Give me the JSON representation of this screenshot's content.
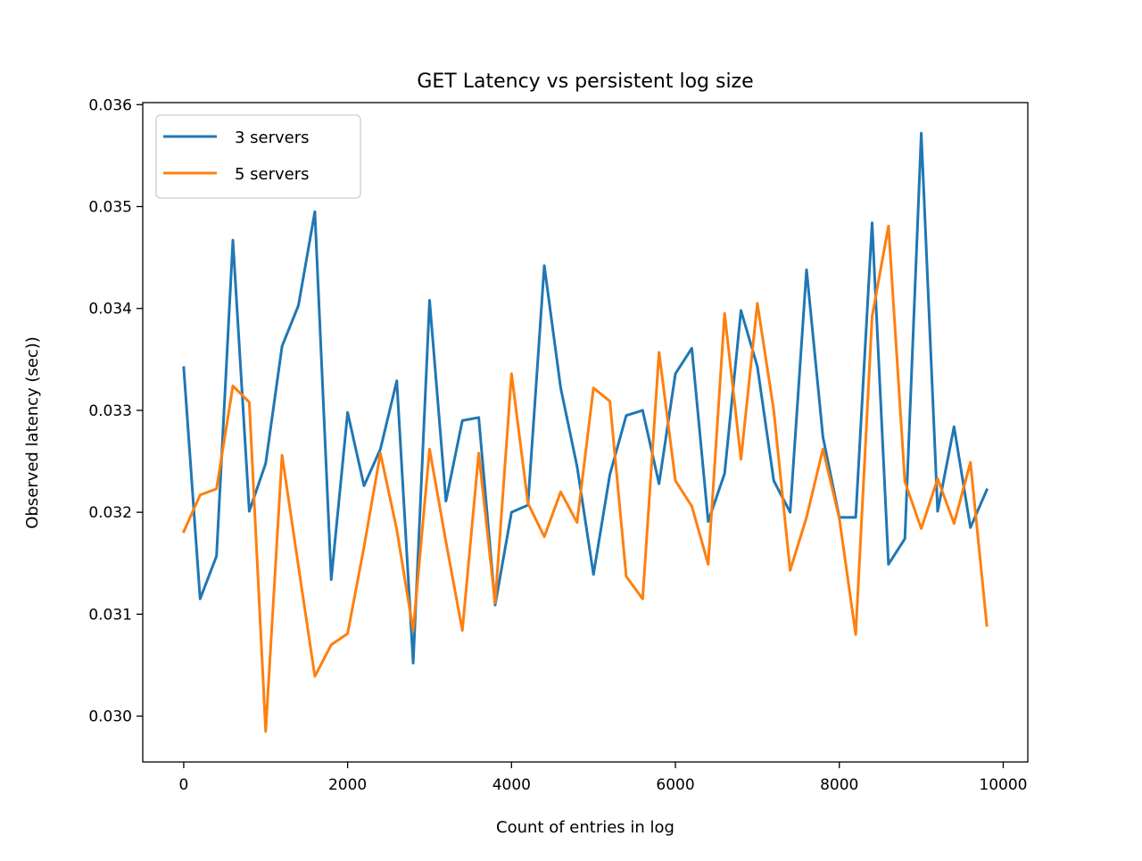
{
  "chart_data": {
    "type": "line",
    "title": "GET Latency vs persistent log size",
    "xlabel": "Count of entries in log",
    "ylabel": "Observed latency (sec))",
    "xlim": [
      -500,
      10300
    ],
    "ylim": [
      0.02955,
      0.03602
    ],
    "xticks": [
      0,
      2000,
      4000,
      6000,
      8000,
      10000
    ],
    "xtick_labels": [
      "0",
      "2000",
      "4000",
      "6000",
      "8000",
      "10000"
    ],
    "yticks": [
      0.03,
      0.031,
      0.032,
      0.033,
      0.034,
      0.035,
      0.036
    ],
    "ytick_labels": [
      "0.030",
      "0.031",
      "0.032",
      "0.033",
      "0.034",
      "0.035",
      "0.036"
    ],
    "grid": false,
    "legend_position": "top-left",
    "x": [
      0,
      200,
      400,
      600,
      800,
      1000,
      1200,
      1400,
      1600,
      1800,
      2000,
      2200,
      2400,
      2600,
      2800,
      3000,
      3200,
      3400,
      3600,
      3800,
      4000,
      4200,
      4400,
      4600,
      4800,
      5000,
      5200,
      5400,
      5600,
      5800,
      6000,
      6200,
      6400,
      6600,
      6800,
      7000,
      7200,
      7400,
      7600,
      7800,
      8000,
      8200,
      8400,
      8600,
      8800,
      9000,
      9200,
      9400,
      9600,
      9800
    ],
    "series": [
      {
        "name": "3 servers",
        "color": "#1f77b4",
        "values": [
          0.03342,
          0.03115,
          0.03157,
          0.03467,
          0.03201,
          0.03248,
          0.03363,
          0.03403,
          0.03495,
          0.03134,
          0.03298,
          0.03226,
          0.03262,
          0.03329,
          0.03052,
          0.03408,
          0.03211,
          0.0329,
          0.03293,
          0.03109,
          0.032,
          0.03207,
          0.03442,
          0.03322,
          0.03245,
          0.03139,
          0.03237,
          0.03295,
          0.033,
          0.03228,
          0.03336,
          0.03361,
          0.03191,
          0.03238,
          0.03398,
          0.03343,
          0.03231,
          0.032,
          0.03438,
          0.03274,
          0.03195,
          0.03195,
          0.03484,
          0.03149,
          0.03174,
          0.03572,
          0.03201,
          0.03284,
          0.03185,
          0.03222
        ]
      },
      {
        "name": "5 servers",
        "color": "#ff7f0e",
        "values": [
          0.03181,
          0.03217,
          0.03223,
          0.03324,
          0.03308,
          0.02985,
          0.03256,
          0.03147,
          0.03039,
          0.0307,
          0.03081,
          0.03166,
          0.03258,
          0.03183,
          0.03084,
          0.03262,
          0.03171,
          0.03084,
          0.03258,
          0.03111,
          0.03336,
          0.03209,
          0.03176,
          0.0322,
          0.0319,
          0.03322,
          0.03309,
          0.03137,
          0.03115,
          0.03357,
          0.03231,
          0.03206,
          0.03149,
          0.03395,
          0.03252,
          0.03405,
          0.033,
          0.03143,
          0.03195,
          0.03262,
          0.03194,
          0.0308,
          0.03392,
          0.03481,
          0.0323,
          0.03184,
          0.03233,
          0.03189,
          0.03249,
          0.03089
        ]
      }
    ]
  }
}
